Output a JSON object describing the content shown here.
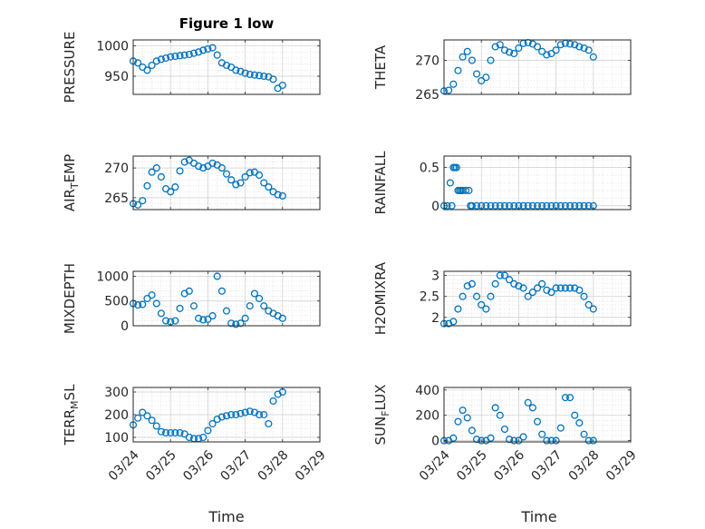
{
  "figure_title": "Figure 1 low",
  "chart_data": [
    {
      "type": "scatter",
      "ylabel": "PRESSURE",
      "title": "Figure 1 low",
      "xlim": [
        "03/24",
        "03/29"
      ],
      "ylim": [
        920,
        1010
      ],
      "yticks": [
        950,
        1000
      ],
      "grid": true,
      "marker": "circle",
      "color": "#0072BD",
      "x": [
        "03/24 00:00",
        "03/24 03:00",
        "03/24 06:00",
        "03/24 09:00",
        "03/24 12:00",
        "03/24 15:00",
        "03/24 18:00",
        "03/24 21:00",
        "03/25 00:00",
        "03/25 03:00",
        "03/25 06:00",
        "03/25 09:00",
        "03/25 12:00",
        "03/25 15:00",
        "03/25 18:00",
        "03/25 21:00",
        "03/26 00:00",
        "03/26 03:00",
        "03/26 06:00",
        "03/26 09:00",
        "03/26 12:00",
        "03/26 15:00",
        "03/26 18:00",
        "03/26 21:00",
        "03/27 00:00",
        "03/27 03:00",
        "03/27 06:00",
        "03/27 09:00",
        "03/27 12:00",
        "03/27 15:00",
        "03/27 18:00",
        "03/27 21:00",
        "03/28 00:00"
      ],
      "y": [
        975,
        972,
        965,
        960,
        968,
        975,
        978,
        980,
        982,
        983,
        984,
        985,
        986,
        988,
        990,
        993,
        995,
        997,
        985,
        972,
        968,
        965,
        960,
        958,
        955,
        953,
        952,
        951,
        950,
        949,
        945,
        930,
        935
      ]
    },
    {
      "type": "scatter",
      "ylabel": "THETA",
      "xlim": [
        "03/24",
        "03/29"
      ],
      "ylim": [
        265,
        273
      ],
      "yticks": [
        265,
        270
      ],
      "grid": true,
      "marker": "circle",
      "color": "#0072BD",
      "x": [
        "03/24 00:00",
        "03/24 03:00",
        "03/24 06:00",
        "03/24 09:00",
        "03/24 12:00",
        "03/24 15:00",
        "03/24 18:00",
        "03/24 21:00",
        "03/25 00:00",
        "03/25 03:00",
        "03/25 06:00",
        "03/25 09:00",
        "03/25 12:00",
        "03/25 15:00",
        "03/25 18:00",
        "03/25 21:00",
        "03/26 00:00",
        "03/26 03:00",
        "03/26 06:00",
        "03/26 09:00",
        "03/26 12:00",
        "03/26 15:00",
        "03/26 18:00",
        "03/26 21:00",
        "03/27 00:00",
        "03/27 03:00",
        "03/27 06:00",
        "03/27 09:00",
        "03/27 12:00",
        "03/27 15:00",
        "03/27 18:00",
        "03/27 21:00",
        "03/28 00:00"
      ],
      "y": [
        265.5,
        265.6,
        266.5,
        268.5,
        270.5,
        271.3,
        270.0,
        268.0,
        267.0,
        267.5,
        270.0,
        272.0,
        272.3,
        271.5,
        271.2,
        271.0,
        271.8,
        272.5,
        272.6,
        272.4,
        272.0,
        271.3,
        270.8,
        271.0,
        271.5,
        272.3,
        272.5,
        272.4,
        272.3,
        272.0,
        271.8,
        271.5,
        270.5
      ]
    },
    {
      "type": "scatter",
      "ylabel": "AIR_TEMP",
      "xlim": [
        "03/24",
        "03/29"
      ],
      "ylim": [
        263,
        272
      ],
      "yticks": [
        265,
        270
      ],
      "grid": true,
      "marker": "circle",
      "color": "#0072BD",
      "x": [
        "03/24 00:00",
        "03/24 03:00",
        "03/24 06:00",
        "03/24 09:00",
        "03/24 12:00",
        "03/24 15:00",
        "03/24 18:00",
        "03/24 21:00",
        "03/25 00:00",
        "03/25 03:00",
        "03/25 06:00",
        "03/25 09:00",
        "03/25 12:00",
        "03/25 15:00",
        "03/25 18:00",
        "03/25 21:00",
        "03/26 00:00",
        "03/26 03:00",
        "03/26 06:00",
        "03/26 09:00",
        "03/26 12:00",
        "03/26 15:00",
        "03/26 18:00",
        "03/26 21:00",
        "03/27 00:00",
        "03/27 03:00",
        "03/27 06:00",
        "03/27 09:00",
        "03/27 12:00",
        "03/27 15:00",
        "03/27 18:00",
        "03/27 21:00",
        "03/28 00:00"
      ],
      "y": [
        264.0,
        263.8,
        264.5,
        267.0,
        269.3,
        270.0,
        268.5,
        266.5,
        266.0,
        266.8,
        269.5,
        271.0,
        271.3,
        270.8,
        270.3,
        270.0,
        270.3,
        270.8,
        270.5,
        270.0,
        269.0,
        268.0,
        267.2,
        267.5,
        268.5,
        269.2,
        269.3,
        268.8,
        267.5,
        266.8,
        266.0,
        265.5,
        265.3
      ]
    },
    {
      "type": "scatter",
      "ylabel": "RAINFALL",
      "xlim": [
        "03/24",
        "03/29"
      ],
      "ylim": [
        -0.05,
        0.65
      ],
      "yticks": [
        0,
        0.5
      ],
      "grid": true,
      "marker": "circle",
      "color": "#0072BD",
      "x": [
        "03/24 00:00",
        "03/24 02:00",
        "03/24 04:00",
        "03/24 05:00",
        "03/24 06:00",
        "03/24 07:00",
        "03/24 08:00",
        "03/24 09:00",
        "03/24 10:00",
        "03/24 11:00",
        "03/24 12:00",
        "03/24 14:00",
        "03/24 16:00",
        "03/24 17:00",
        "03/24 18:00",
        "03/24 21:00",
        "03/25 00:00",
        "03/25 03:00",
        "03/25 06:00",
        "03/25 09:00",
        "03/25 12:00",
        "03/25 15:00",
        "03/25 18:00",
        "03/25 21:00",
        "03/26 00:00",
        "03/26 03:00",
        "03/26 06:00",
        "03/26 09:00",
        "03/26 12:00",
        "03/26 15:00",
        "03/26 18:00",
        "03/26 21:00",
        "03/27 00:00",
        "03/27 03:00",
        "03/27 06:00",
        "03/27 09:00",
        "03/27 12:00",
        "03/27 15:00",
        "03/27 18:00",
        "03/27 21:00",
        "03/28 00:00"
      ],
      "y": [
        0,
        0,
        0.3,
        0,
        0.5,
        0.5,
        0.5,
        0.2,
        0.2,
        0.2,
        0.2,
        0.2,
        0.2,
        0,
        0,
        0,
        0,
        0,
        0,
        0,
        0,
        0,
        0,
        0,
        0,
        0,
        0,
        0,
        0,
        0,
        0,
        0,
        0,
        0,
        0,
        0,
        0,
        0,
        0,
        0,
        0
      ]
    },
    {
      "type": "scatter",
      "ylabel": "MIXDEPTH",
      "xlim": [
        "03/24",
        "03/29"
      ],
      "ylim": [
        0,
        1100
      ],
      "yticks": [
        0,
        500,
        1000
      ],
      "grid": true,
      "marker": "circle",
      "color": "#0072BD",
      "x": [
        "03/24 00:00",
        "03/24 03:00",
        "03/24 06:00",
        "03/24 09:00",
        "03/24 12:00",
        "03/24 15:00",
        "03/24 18:00",
        "03/24 21:00",
        "03/25 00:00",
        "03/25 03:00",
        "03/25 06:00",
        "03/25 09:00",
        "03/25 12:00",
        "03/25 15:00",
        "03/25 18:00",
        "03/25 21:00",
        "03/26 00:00",
        "03/26 03:00",
        "03/26 06:00",
        "03/26 09:00",
        "03/26 12:00",
        "03/26 15:00",
        "03/26 18:00",
        "03/26 21:00",
        "03/27 00:00",
        "03/27 03:00",
        "03/27 06:00",
        "03/27 09:00",
        "03/27 12:00",
        "03/27 15:00",
        "03/27 18:00",
        "03/27 21:00",
        "03/28 00:00"
      ],
      "y": [
        450,
        420,
        430,
        550,
        620,
        450,
        250,
        100,
        80,
        100,
        350,
        650,
        700,
        400,
        150,
        120,
        130,
        200,
        1000,
        700,
        300,
        50,
        30,
        50,
        150,
        400,
        650,
        550,
        400,
        300,
        250,
        200,
        150
      ]
    },
    {
      "type": "scatter",
      "ylabel": "H2OMIXRA",
      "xlim": [
        "03/24",
        "03/29"
      ],
      "ylim": [
        1.8,
        3.1
      ],
      "yticks": [
        2,
        2.5,
        3
      ],
      "grid": true,
      "marker": "circle",
      "color": "#0072BD",
      "x": [
        "03/24 00:00",
        "03/24 03:00",
        "03/24 06:00",
        "03/24 09:00",
        "03/24 12:00",
        "03/24 15:00",
        "03/24 18:00",
        "03/24 21:00",
        "03/25 00:00",
        "03/25 03:00",
        "03/25 06:00",
        "03/25 09:00",
        "03/25 12:00",
        "03/25 15:00",
        "03/25 18:00",
        "03/25 21:00",
        "03/26 00:00",
        "03/26 03:00",
        "03/26 06:00",
        "03/26 09:00",
        "03/26 12:00",
        "03/26 15:00",
        "03/26 18:00",
        "03/26 21:00",
        "03/27 00:00",
        "03/27 03:00",
        "03/27 06:00",
        "03/27 09:00",
        "03/27 12:00",
        "03/27 15:00",
        "03/27 18:00",
        "03/27 21:00",
        "03/28 00:00"
      ],
      "y": [
        1.85,
        1.85,
        1.9,
        2.2,
        2.5,
        2.75,
        2.8,
        2.5,
        2.3,
        2.2,
        2.5,
        2.8,
        3.0,
        3.0,
        2.9,
        2.8,
        2.75,
        2.7,
        2.5,
        2.6,
        2.7,
        2.8,
        2.65,
        2.6,
        2.7,
        2.7,
        2.7,
        2.7,
        2.7,
        2.65,
        2.5,
        2.3,
        2.2
      ]
    },
    {
      "type": "scatter",
      "ylabel": "TERR_MSL",
      "xlim": [
        "03/24",
        "03/29"
      ],
      "ylim": [
        80,
        320
      ],
      "yticks": [
        100,
        200,
        300
      ],
      "grid": true,
      "marker": "circle",
      "color": "#0072BD",
      "x": [
        "03/24 00:00",
        "03/24 03:00",
        "03/24 06:00",
        "03/24 09:00",
        "03/24 12:00",
        "03/24 15:00",
        "03/24 18:00",
        "03/24 21:00",
        "03/25 00:00",
        "03/25 03:00",
        "03/25 06:00",
        "03/25 09:00",
        "03/25 12:00",
        "03/25 15:00",
        "03/25 18:00",
        "03/25 21:00",
        "03/26 00:00",
        "03/26 03:00",
        "03/26 06:00",
        "03/26 09:00",
        "03/26 12:00",
        "03/26 15:00",
        "03/26 18:00",
        "03/26 21:00",
        "03/27 00:00",
        "03/27 03:00",
        "03/27 06:00",
        "03/27 09:00",
        "03/27 12:00",
        "03/27 15:00",
        "03/27 18:00",
        "03/27 21:00",
        "03/28 00:00"
      ],
      "y": [
        155,
        185,
        210,
        195,
        175,
        150,
        125,
        120,
        120,
        120,
        120,
        115,
        100,
        95,
        95,
        100,
        130,
        160,
        180,
        190,
        195,
        200,
        200,
        205,
        210,
        215,
        210,
        200,
        200,
        160,
        260,
        290,
        300
      ]
    },
    {
      "type": "scatter",
      "ylabel": "SUN_FLUX",
      "xlim": [
        "03/24",
        "03/29"
      ],
      "ylim": [
        -10,
        420
      ],
      "yticks": [
        0,
        200,
        400
      ],
      "grid": true,
      "marker": "circle",
      "color": "#0072BD",
      "x": [
        "03/24 00:00",
        "03/24 03:00",
        "03/24 06:00",
        "03/24 09:00",
        "03/24 12:00",
        "03/24 15:00",
        "03/24 18:00",
        "03/24 21:00",
        "03/25 00:00",
        "03/25 03:00",
        "03/25 06:00",
        "03/25 09:00",
        "03/25 12:00",
        "03/25 15:00",
        "03/25 18:00",
        "03/25 21:00",
        "03/26 00:00",
        "03/26 03:00",
        "03/26 06:00",
        "03/26 09:00",
        "03/26 12:00",
        "03/26 15:00",
        "03/26 18:00",
        "03/26 21:00",
        "03/27 00:00",
        "03/27 03:00",
        "03/27 06:00",
        "03/27 09:00",
        "03/27 12:00",
        "03/27 15:00",
        "03/27 18:00",
        "03/27 21:00",
        "03/28 00:00"
      ],
      "y": [
        0,
        0,
        20,
        150,
        240,
        180,
        80,
        10,
        0,
        0,
        20,
        260,
        200,
        90,
        10,
        0,
        0,
        30,
        300,
        260,
        150,
        50,
        0,
        0,
        0,
        100,
        340,
        340,
        200,
        140,
        50,
        0,
        0
      ]
    }
  ],
  "x_tick_labels": [
    "03/24",
    "03/25",
    "03/26",
    "03/27",
    "03/28",
    "03/29"
  ],
  "x_axis_label": "Time"
}
